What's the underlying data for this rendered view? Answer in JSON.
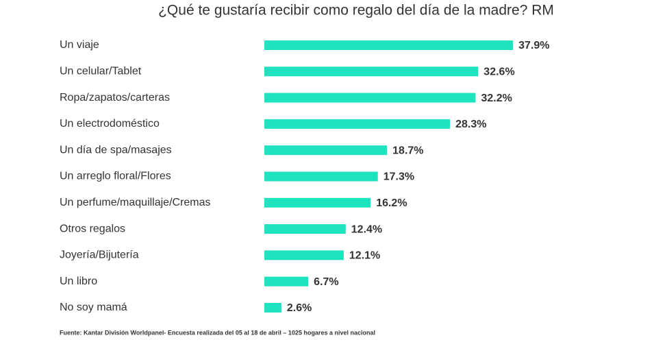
{
  "chart_data": {
    "type": "bar",
    "orientation": "horizontal",
    "title": "¿Qué te gustaría recibir como regalo del día de la madre? RM",
    "categories": [
      "Un viaje",
      "Un celular/Tablet",
      "Ropa/zapatos/carteras",
      "Un electrodoméstico",
      "Un día de spa/masajes",
      "Un arreglo floral/Flores",
      "Un perfume/maquillaje/Cremas",
      "Otros regalos",
      "Joyería/Bijutería",
      "Un libro",
      "No soy mamá"
    ],
    "values": [
      37.9,
      32.6,
      32.2,
      28.3,
      18.7,
      17.3,
      16.2,
      12.4,
      12.1,
      6.7,
      2.6
    ],
    "value_labels": [
      "37.9%",
      "32.6%",
      "32.2%",
      "28.3%",
      "18.7%",
      "17.3%",
      "16.2%",
      "12.4%",
      "12.1%",
      "6.7%",
      "2.6%"
    ],
    "color": "#1ee3bf",
    "source": "Fuente: Kantar División Worldpanel- Encuesta realizada del 05  al 18 de abril – 1025  hogares a nivel nacional"
  }
}
